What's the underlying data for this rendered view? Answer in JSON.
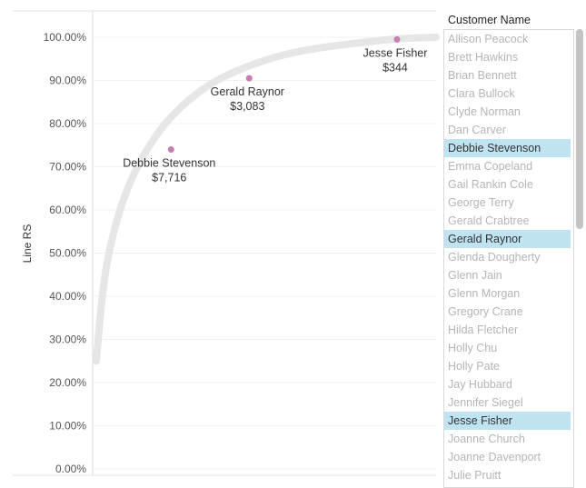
{
  "chart_data": {
    "type": "line",
    "ylabel": "Line RS",
    "xlabel": "",
    "ylim": [
      0,
      1.0
    ],
    "yticks": [
      0,
      0.1,
      0.2,
      0.3,
      0.4,
      0.5,
      0.6,
      0.7,
      0.8,
      0.9,
      1.0
    ],
    "ytick_labels": [
      "0.00%",
      "10.00%",
      "20.00%",
      "30.00%",
      "40.00%",
      "50.00%",
      "60.00%",
      "70.00%",
      "80.00%",
      "90.00%",
      "100.00%"
    ],
    "grid": true,
    "line_color": "#e6e6e6",
    "marker_color": "#c97bb4",
    "series": [
      {
        "x": [
          0,
          0.02,
          0.05,
          0.09,
          0.14,
          0.2,
          0.27,
          0.35,
          0.45,
          0.55,
          0.65,
          0.75,
          0.85,
          0.92,
          1.0
        ],
        "y": [
          0.25,
          0.43,
          0.55,
          0.65,
          0.73,
          0.8,
          0.855,
          0.9,
          0.935,
          0.96,
          0.975,
          0.985,
          0.994,
          0.998,
          1.0
        ]
      }
    ],
    "highlights": [
      {
        "name": "Debbie Stevenson",
        "value": "$7,716",
        "x": 0.22,
        "y": 0.74
      },
      {
        "name": "Gerald Raynor",
        "value": "$3,083",
        "x": 0.45,
        "y": 0.905
      },
      {
        "name": "Jesse Fisher",
        "value": "$344",
        "x": 0.885,
        "y": 0.995
      }
    ]
  },
  "panel": {
    "title": "Customer Name",
    "customers": [
      {
        "name": "Allison Peacock",
        "selected": false
      },
      {
        "name": "Brett Hawkins",
        "selected": false
      },
      {
        "name": "Brian Bennett",
        "selected": false
      },
      {
        "name": "Clara Bullock",
        "selected": false
      },
      {
        "name": "Clyde Norman",
        "selected": false
      },
      {
        "name": "Dan Carver",
        "selected": false
      },
      {
        "name": "Debbie Stevenson",
        "selected": true
      },
      {
        "name": "Emma Copeland",
        "selected": false
      },
      {
        "name": "Gail Rankin Cole",
        "selected": false
      },
      {
        "name": "George Terry",
        "selected": false
      },
      {
        "name": "Gerald Crabtree",
        "selected": false
      },
      {
        "name": "Gerald Raynor",
        "selected": true
      },
      {
        "name": "Glenda Dougherty",
        "selected": false
      },
      {
        "name": "Glenn Jain",
        "selected": false
      },
      {
        "name": "Glenn Morgan",
        "selected": false
      },
      {
        "name": "Gregory Crane",
        "selected": false
      },
      {
        "name": "Hilda Fletcher",
        "selected": false
      },
      {
        "name": "Holly Chu",
        "selected": false
      },
      {
        "name": "Holly Pate",
        "selected": false
      },
      {
        "name": "Jay Hubbard",
        "selected": false
      },
      {
        "name": "Jennifer Siegel",
        "selected": false
      },
      {
        "name": "Jesse Fisher",
        "selected": true
      },
      {
        "name": "Joanne Church",
        "selected": false
      },
      {
        "name": "Joanne Davenport",
        "selected": false
      },
      {
        "name": "Julie Pruitt",
        "selected": false
      }
    ]
  }
}
